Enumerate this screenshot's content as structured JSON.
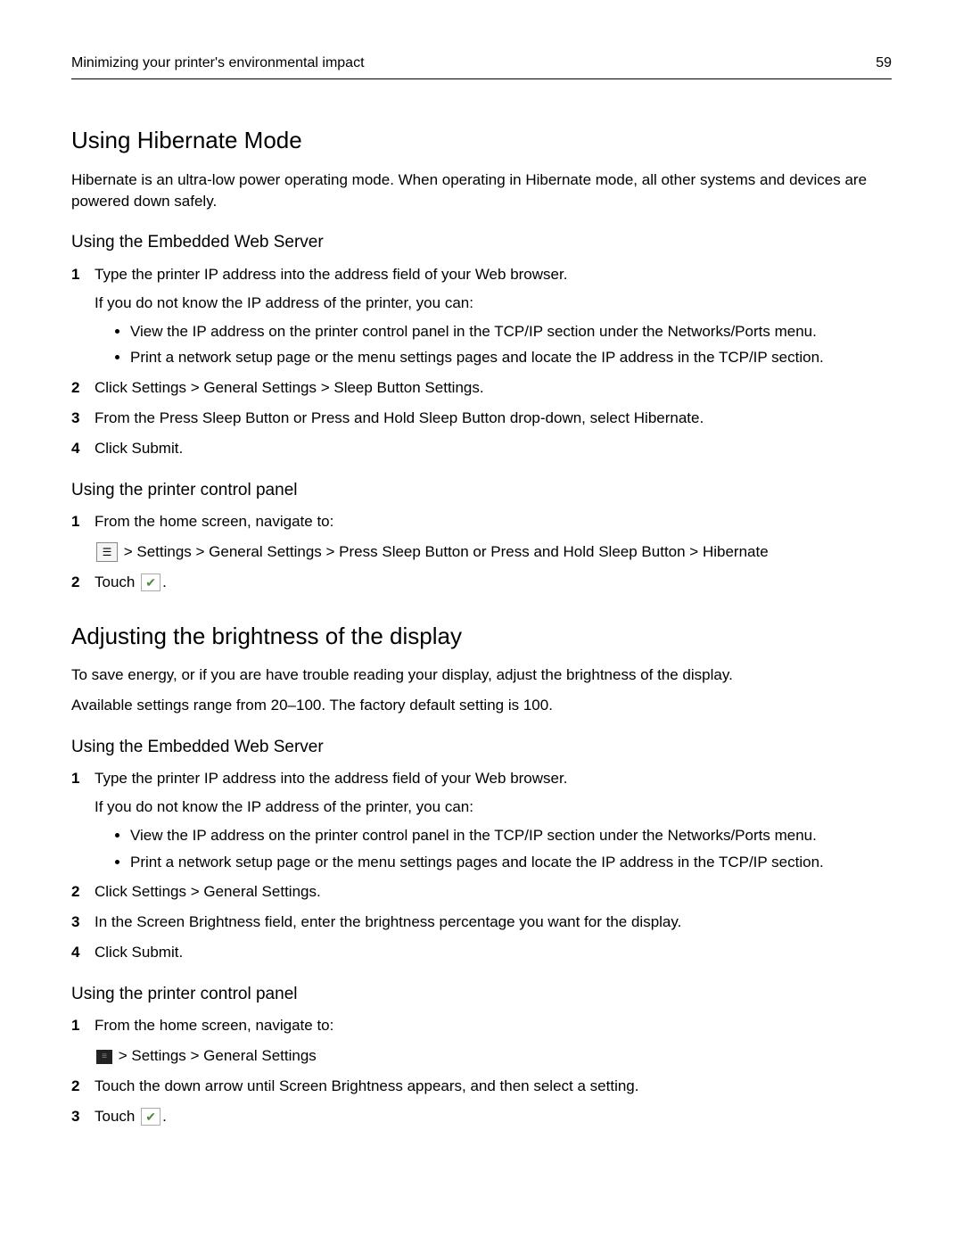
{
  "header": {
    "title": "Minimizing your printer's environmental impact",
    "page": "59"
  },
  "section1": {
    "heading": "Using Hibernate Mode",
    "intro": "Hibernate is an ultra‑low power operating mode. When operating in Hibernate mode, all other systems and devices are powered down safely.",
    "sub1": {
      "heading": "Using the Embedded Web Server",
      "step1": "Type the printer IP address into the address field of your Web browser.",
      "step1_note": "If you do not know the IP address of the printer, you can:",
      "bullet1": "View the IP address on the printer control panel in the TCP/IP section under the Networks/Ports menu.",
      "bullet2": "Print a network setup page or the menu settings pages and locate the IP address in the TCP/IP section.",
      "step2": "Click Settings > General Settings > Sleep Button Settings.",
      "step3": "From the Press Sleep Button or Press and Hold Sleep Button drop‑down, select Hibernate.",
      "step4": "Click Submit."
    },
    "sub2": {
      "heading": "Using the printer control panel",
      "step1": "From the home screen, navigate to:",
      "nav": " > Settings > General Settings > Press Sleep Button or Press and Hold Sleep Button > Hibernate",
      "step2_pre": "Touch ",
      "step2_post": "."
    }
  },
  "section2": {
    "heading": "Adjusting the brightness of the display",
    "p1": "To save energy, or if you are have trouble reading your display, adjust the brightness of the display.",
    "p2": "Available settings range from 20–100. The factory default setting is 100.",
    "sub1": {
      "heading": "Using the Embedded Web Server",
      "step1": "Type the printer IP address into the address field of your Web browser.",
      "step1_note": "If you do not know the IP address of the printer, you can:",
      "bullet1": "View the IP address on the printer control panel in the TCP/IP section under the Networks/Ports menu.",
      "bullet2": "Print a network setup page or the menu settings pages and locate the IP address in the TCP/IP section.",
      "step2": "Click Settings > General Settings.",
      "step3": "In the Screen Brightness field, enter the brightness percentage you want for the display.",
      "step4": "Click Submit."
    },
    "sub2": {
      "heading": "Using the printer control panel",
      "step1": "From the home screen, navigate to:",
      "nav": " > Settings > General Settings",
      "step2": "Touch the down arrow until Screen Brightness appears, and then select a setting.",
      "step3_pre": "Touch ",
      "step3_post": "."
    }
  }
}
